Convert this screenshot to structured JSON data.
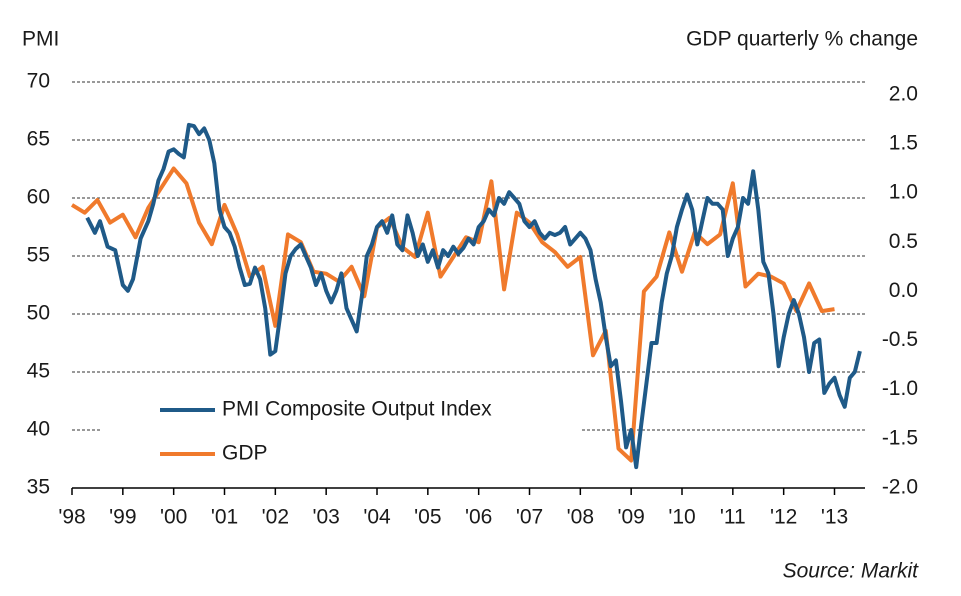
{
  "chart_data": {
    "type": "line",
    "y_label": "PMI",
    "y2_label": "GDP quarterly % change",
    "source": "Source: Markit",
    "xlim": [
      1998,
      2013.6
    ],
    "xticks": [
      {
        "value": 1998,
        "label": "'98"
      },
      {
        "value": 1999,
        "label": "'99"
      },
      {
        "value": 2000,
        "label": "'00"
      },
      {
        "value": 2001,
        "label": "'01"
      },
      {
        "value": 2002,
        "label": "'02"
      },
      {
        "value": 2003,
        "label": "'03"
      },
      {
        "value": 2004,
        "label": "'04"
      },
      {
        "value": 2005,
        "label": "'05"
      },
      {
        "value": 2006,
        "label": "'06"
      },
      {
        "value": 2007,
        "label": "'07"
      },
      {
        "value": 2008,
        "label": "'08"
      },
      {
        "value": 2009,
        "label": "'09"
      },
      {
        "value": 2010,
        "label": "'10"
      },
      {
        "value": 2011,
        "label": "'11"
      },
      {
        "value": 2012,
        "label": "'12"
      },
      {
        "value": 2013,
        "label": "'13"
      }
    ],
    "ylim": [
      35,
      70
    ],
    "yticks": [
      35,
      40,
      45,
      50,
      55,
      60,
      65,
      70
    ],
    "y2lim": [
      -2,
      2.13
    ],
    "y2ticks": [
      {
        "value": -2,
        "label": "-2.0"
      },
      -1.5,
      {
        "value": -1,
        "label": "-1.0"
      },
      -0.5,
      {
        "value": 0,
        "label": "0.0"
      },
      0.5,
      {
        "value": 1,
        "label": "1.0"
      },
      1.5,
      {
        "value": 2,
        "label": "2.0"
      }
    ],
    "grid": true,
    "series": [
      {
        "name": "PMI Composite Output Index",
        "color": "#1f5a88",
        "x": [
          1998.3,
          1998.45,
          1998.55,
          1998.7,
          1998.85,
          1999.0,
          1999.1,
          1999.2,
          1999.35,
          1999.5,
          1999.6,
          1999.7,
          1999.8,
          1999.9,
          2000.0,
          2000.1,
          2000.2,
          2000.3,
          2000.4,
          2000.5,
          2000.6,
          2000.7,
          2000.8,
          2000.9,
          2001.0,
          2001.1,
          2001.2,
          2001.3,
          2001.4,
          2001.5,
          2001.6,
          2001.7,
          2001.8,
          2001.9,
          2002.0,
          2002.1,
          2002.2,
          2002.3,
          2002.4,
          2002.5,
          2002.6,
          2002.7,
          2002.8,
          2002.9,
          2003.0,
          2003.1,
          2003.2,
          2003.3,
          2003.4,
          2003.5,
          2003.6,
          2003.7,
          2003.8,
          2003.9,
          2004.0,
          2004.1,
          2004.2,
          2004.3,
          2004.4,
          2004.5,
          2004.6,
          2004.7,
          2004.8,
          2004.9,
          2005.0,
          2005.1,
          2005.2,
          2005.3,
          2005.4,
          2005.5,
          2005.6,
          2005.7,
          2005.8,
          2005.9,
          2006.0,
          2006.1,
          2006.2,
          2006.3,
          2006.4,
          2006.5,
          2006.6,
          2006.7,
          2006.8,
          2006.9,
          2007.0,
          2007.1,
          2007.2,
          2007.3,
          2007.4,
          2007.5,
          2007.6,
          2007.7,
          2007.8,
          2007.9,
          2008.0,
          2008.1,
          2008.2,
          2008.3,
          2008.4,
          2008.5,
          2008.6,
          2008.7,
          2008.8,
          2008.9,
          2009.0,
          2009.1,
          2009.2,
          2009.3,
          2009.4,
          2009.5,
          2009.6,
          2009.7,
          2009.8,
          2009.9,
          2010.0,
          2010.1,
          2010.2,
          2010.3,
          2010.4,
          2010.5,
          2010.6,
          2010.7,
          2010.8,
          2010.9,
          2011.0,
          2011.1,
          2011.2,
          2011.3,
          2011.4,
          2011.5,
          2011.6,
          2011.7,
          2011.8,
          2011.9,
          2012.0,
          2012.1,
          2012.2,
          2012.3,
          2012.4,
          2012.5,
          2012.6,
          2012.7,
          2012.8,
          2012.9,
          2013.0,
          2013.1,
          2013.2,
          2013.3,
          2013.4,
          2013.5
        ],
        "values": [
          58.3,
          57,
          58,
          55.8,
          55.5,
          52.5,
          52,
          53,
          56.5,
          58,
          59.5,
          61.5,
          62.5,
          64,
          64.2,
          63.8,
          63.5,
          66.3,
          66.2,
          65.5,
          66,
          65,
          63,
          59,
          57.5,
          57,
          55.8,
          54,
          52.5,
          52.6,
          54,
          53,
          50.5,
          46.5,
          46.8,
          50,
          53.5,
          55,
          55.6,
          56,
          55,
          54,
          52.5,
          53.5,
          52,
          51,
          52,
          53.5,
          50.5,
          49.5,
          48.5,
          51.5,
          55,
          56,
          57.5,
          58,
          57,
          58.5,
          56,
          55.5,
          58.5,
          57,
          55,
          56,
          54.5,
          55.5,
          54,
          55.5,
          55,
          55.8,
          55.2,
          55.7,
          56.5,
          56,
          57.5,
          58,
          59,
          58.5,
          60,
          59.5,
          60.5,
          60,
          59.5,
          58,
          57.5,
          58,
          57,
          56.5,
          57,
          56.8,
          57,
          57.5,
          56,
          56.5,
          57,
          56.5,
          55.5,
          53,
          51,
          48,
          45.5,
          46,
          42.5,
          38.5,
          40,
          36.8,
          40.5,
          44,
          47.5,
          47.5,
          51,
          53.5,
          55,
          57.5,
          59,
          60.3,
          59,
          56,
          58,
          60,
          59.5,
          59.5,
          59,
          55,
          56.5,
          57.5,
          60,
          59.5,
          62.3,
          59,
          54.5,
          53.5,
          50,
          45.5,
          48,
          50,
          51.2,
          50,
          48,
          45,
          47.5,
          47.8,
          43.2,
          44,
          44.5,
          43,
          42,
          44.5,
          45,
          46.8
        ]
      },
      {
        "name": "GDP",
        "color": "#f07a2c",
        "axis": "y2",
        "x": [
          1998.0,
          1998.25,
          1998.5,
          1998.75,
          1999.0,
          1999.25,
          1999.5,
          1999.75,
          2000.0,
          2000.25,
          2000.5,
          2000.75,
          2001.0,
          2001.25,
          2001.5,
          2001.75,
          2002.0,
          2002.25,
          2002.5,
          2002.75,
          2003.0,
          2003.25,
          2003.5,
          2003.75,
          2004.0,
          2004.25,
          2004.5,
          2004.75,
          2005.0,
          2005.25,
          2005.5,
          2005.75,
          2006.0,
          2006.25,
          2006.5,
          2006.75,
          2007.0,
          2007.25,
          2007.5,
          2007.75,
          2008.0,
          2008.25,
          2008.5,
          2008.75,
          2009.0,
          2009.25,
          2009.5,
          2009.75,
          2010.0,
          2010.25,
          2010.5,
          2010.75,
          2011.0,
          2011.25,
          2011.5,
          2011.75,
          2012.0,
          2012.25,
          2012.5,
          2012.75,
          2013.0
        ],
        "values": [
          0.88,
          0.8,
          0.93,
          0.7,
          0.78,
          0.55,
          0.85,
          1.05,
          1.25,
          1.1,
          0.7,
          0.48,
          0.88,
          0.58,
          0.15,
          0.25,
          -0.35,
          0.58,
          0.5,
          0.2,
          0.18,
          0.1,
          0.25,
          -0.05,
          0.65,
          0.75,
          0.45,
          0.35,
          0.8,
          0.15,
          0.35,
          0.55,
          0.5,
          1.12,
          0.02,
          0.8,
          0.7,
          0.5,
          0.4,
          0.25,
          0.35,
          -0.65,
          -0.4,
          -1.6,
          -1.72,
          0.0,
          0.15,
          0.6,
          0.2,
          0.6,
          0.48,
          0.58,
          1.1,
          0.05,
          0.18,
          0.15,
          0.08,
          -0.2,
          0.08,
          -0.2,
          -0.18
        ]
      }
    ]
  }
}
